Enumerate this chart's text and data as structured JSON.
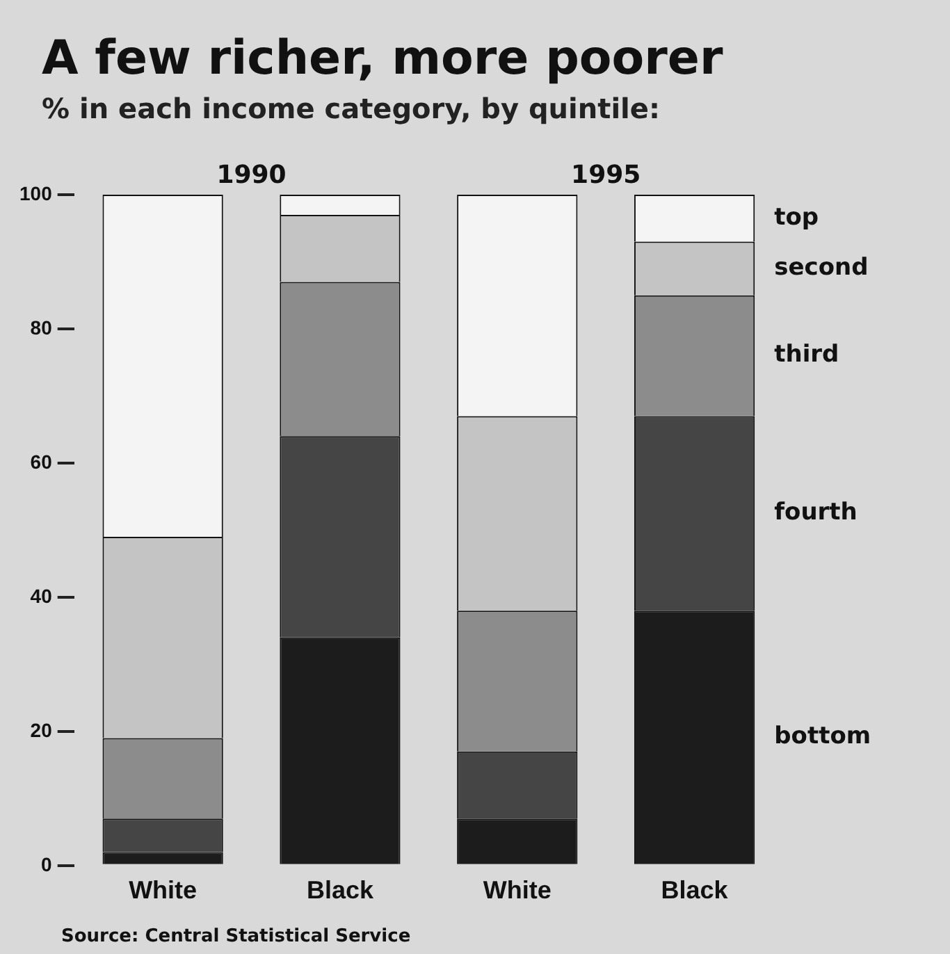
{
  "chart_data": {
    "type": "bar",
    "title": "A few richer, more poorer",
    "subtitle": "% in each income category, by quintile:",
    "categories": [
      "White",
      "Black",
      "White",
      "Black"
    ],
    "stacked": true,
    "legend": false,
    "grid": false,
    "ylim": [
      0,
      100
    ],
    "yticks": [
      0,
      20,
      40,
      60,
      80,
      100
    ],
    "annotations": [
      "1990",
      "1995",
      "Source: Central Statistical Service"
    ],
    "series": [
      {
        "name": "bottom",
        "color": "#1c1c1c",
        "values": [
          2,
          34,
          7,
          38
        ]
      },
      {
        "name": "fourth",
        "color": "#454545",
        "values": [
          5,
          30,
          10,
          29
        ]
      },
      {
        "name": "third",
        "color": "#8c8c8c",
        "values": [
          12,
          23,
          21,
          18
        ]
      },
      {
        "name": "second",
        "color": "#c4c4c4",
        "values": [
          30,
          10,
          29,
          8
        ]
      },
      {
        "name": "top",
        "color": "#f4f4f4",
        "values": [
          51,
          3,
          33,
          7
        ]
      }
    ]
  }
}
